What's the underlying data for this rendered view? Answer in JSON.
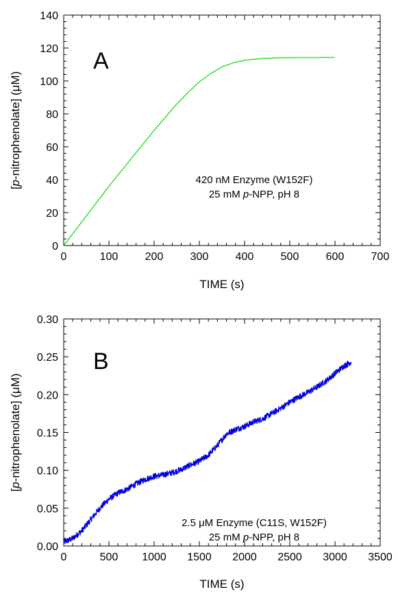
{
  "chart_data": [
    {
      "type": "line",
      "panel_label": "A",
      "xlabel": "TIME   (s)",
      "ylabel_parts": [
        "[",
        "p",
        "-nitrophenolate]   (",
        "μ",
        "M)"
      ],
      "xlim": [
        0,
        700
      ],
      "ylim": [
        0,
        140
      ],
      "x_ticks": [
        0,
        100,
        200,
        300,
        400,
        500,
        600,
        700
      ],
      "y_ticks": [
        0,
        20,
        40,
        60,
        80,
        100,
        120,
        140
      ],
      "annotation": {
        "line1": "420 nM Enzyme (W152F)",
        "line2_parts": [
          "25 mM ",
          "p",
          "-NPP, pH 8"
        ]
      },
      "color": "#00dd00",
      "series": [
        {
          "x": [
            0,
            25,
            50,
            75,
            100,
            125,
            150,
            175,
            200,
            225,
            250,
            275,
            300,
            325,
            350,
            375,
            400,
            425,
            450,
            475,
            500,
            525,
            550,
            575,
            600
          ],
          "y": [
            0,
            9,
            18,
            27,
            36,
            44.5,
            53,
            61.5,
            70,
            78,
            86,
            93,
            99.5,
            104.5,
            108.5,
            111,
            112.5,
            113.3,
            113.8,
            114,
            114.1,
            114.2,
            114.2,
            114.3,
            114.3
          ]
        }
      ]
    },
    {
      "type": "line",
      "panel_label": "B",
      "xlabel": "TIME   (s)",
      "ylabel_parts": [
        "[",
        "p",
        "-nitrophenolate]   (",
        "μ",
        "M)"
      ],
      "xlim": [
        0,
        3500
      ],
      "ylim": [
        0,
        0.3
      ],
      "x_ticks": [
        0,
        500,
        1000,
        1500,
        2000,
        2500,
        3000,
        3500
      ],
      "y_ticks": [
        "0.00",
        "0.05",
        "0.10",
        "0.15",
        "0.20",
        "0.25",
        "0.30"
      ],
      "annotation": {
        "line1_parts": [
          "2.5 ",
          "μ",
          "M Enzyme (C11S, W152F)"
        ],
        "line2_parts": [
          "25 mM ",
          "p",
          "-NPP, pH 8"
        ]
      },
      "color": "#0000dd",
      "noise_amplitude": 0.004,
      "series": [
        {
          "x": [
            0,
            100,
            200,
            300,
            400,
            500,
            600,
            700,
            800,
            900,
            1000,
            1100,
            1200,
            1300,
            1400,
            1500,
            1600,
            1700,
            1800,
            1900,
            2000,
            2100,
            2200,
            2300,
            2400,
            2500,
            2600,
            2700,
            2800,
            2900,
            3000,
            3100,
            3180
          ],
          "y": [
            0.005,
            0.01,
            0.02,
            0.035,
            0.05,
            0.062,
            0.07,
            0.075,
            0.082,
            0.088,
            0.092,
            0.094,
            0.097,
            0.101,
            0.107,
            0.112,
            0.12,
            0.133,
            0.148,
            0.154,
            0.158,
            0.164,
            0.168,
            0.175,
            0.182,
            0.19,
            0.197,
            0.203,
            0.21,
            0.218,
            0.228,
            0.238,
            0.243
          ]
        }
      ]
    }
  ]
}
